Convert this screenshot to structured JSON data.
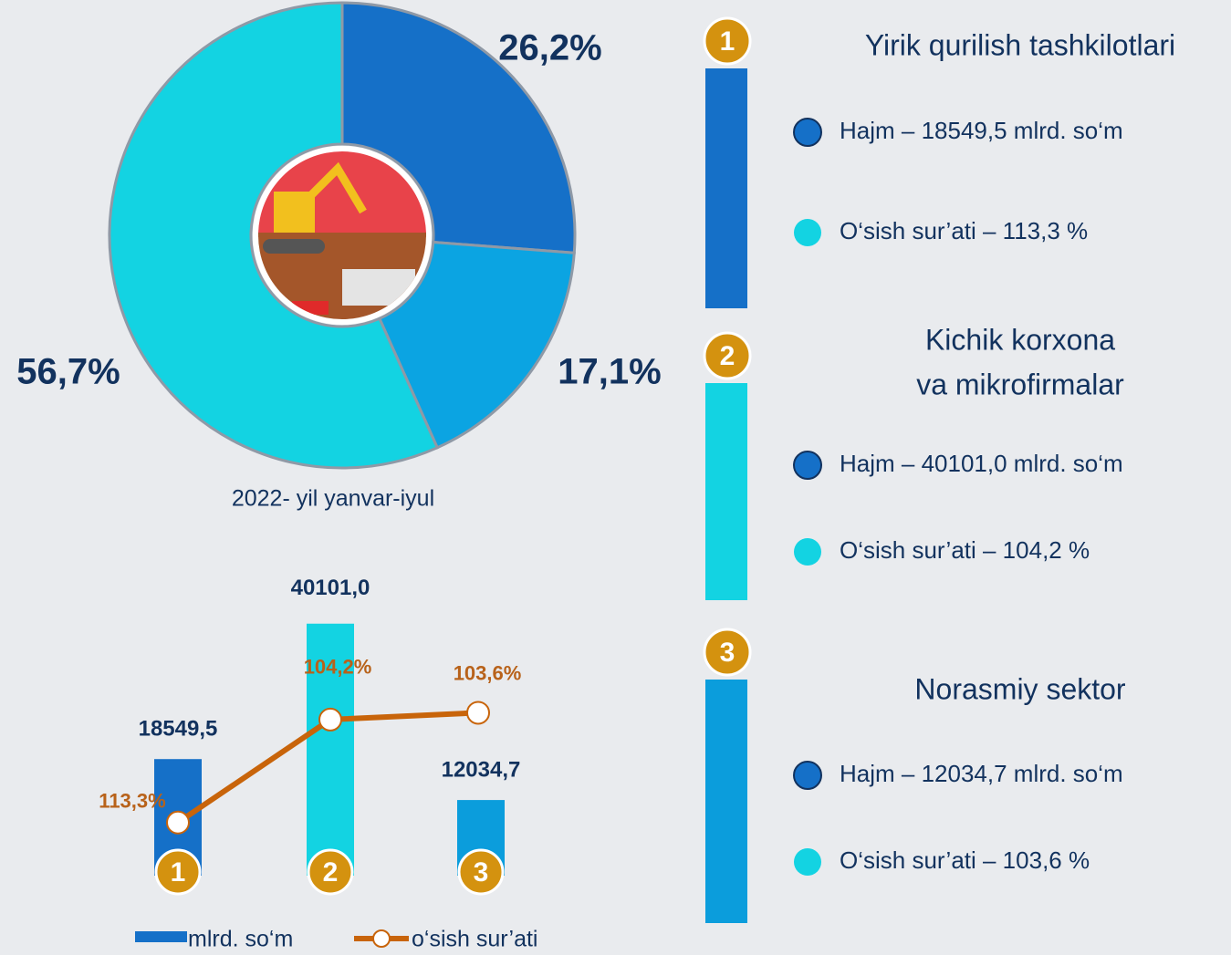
{
  "chart_data": [
    {
      "type": "donut",
      "subtitle": "2022- yil yanvar-iyul",
      "values": [
        26.2,
        17.1,
        56.7
      ],
      "value_labels": [
        "26,2%",
        "17,1%",
        "56,7%"
      ],
      "colors": [
        "#1570c8",
        "#0ba4e2",
        "#13d3e2"
      ]
    },
    {
      "type": "bar_line",
      "categories": [
        "1",
        "2",
        "3"
      ],
      "ylim": [
        0,
        45000
      ],
      "y2lim": [
        118,
        93
      ],
      "series": [
        {
          "name": "mlrd. so‘m",
          "type": "bar",
          "colors": [
            "#1570c8",
            "#13d3e2",
            "#0b9ddc"
          ],
          "color": "#1570c8",
          "values": [
            18549.5,
            40101.0,
            12034.7
          ],
          "value_labels": [
            "18549,5",
            "40101,0",
            "12034,7"
          ]
        },
        {
          "name": "o‘sish sur’ati",
          "type": "line",
          "axis": "y2",
          "color": "#c8640a",
          "values": [
            113.3,
            104.2,
            103.6
          ],
          "value_labels": [
            "113,3%",
            "104,2%",
            "103,6%"
          ]
        }
      ]
    }
  ],
  "panels": [
    {
      "number": "1",
      "color": "#1570c8",
      "title": [
        "Yirik qurilish tashkilotlari"
      ],
      "items": [
        "Hajm – 18549,5 mlrd. so‘m",
        "O‘sish sur’ati – 113,3 %"
      ]
    },
    {
      "number": "2",
      "color": "#13d3e2",
      "title": [
        "Kichik korxona",
        "va mikrofirmalar"
      ],
      "items": [
        "Hajm – 40101,0 mlrd. so‘m",
        "O‘sish sur’ati – 104,2 %"
      ]
    },
    {
      "number": "3",
      "color": "#0b9ddc",
      "title": [
        "Norasmiy sektor"
      ],
      "items": [
        "Hajm – 12034,7 mlrd. so‘m",
        "O‘sish sur’ati – 103,6 %"
      ]
    }
  ]
}
